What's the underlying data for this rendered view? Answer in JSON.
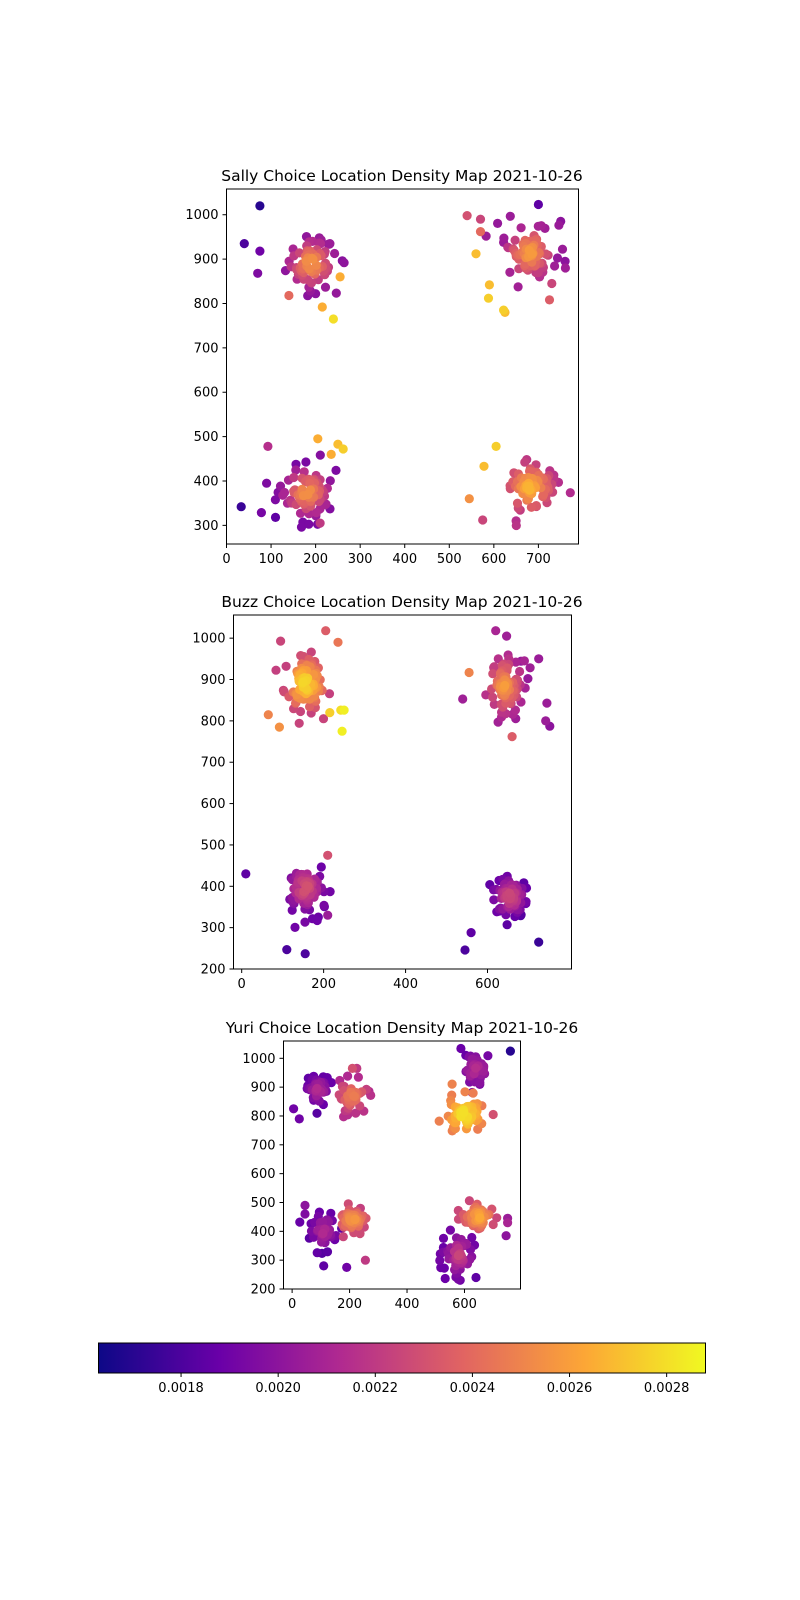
{
  "chart_data": [
    {
      "type": "scatter",
      "title": "Sally Choice Location Density Map 2021-10-26",
      "xlim": [
        0,
        790
      ],
      "ylim": [
        258,
        1058
      ],
      "xticks": [
        0,
        100,
        200,
        300,
        400,
        500,
        600,
        700
      ],
      "yticks": [
        300,
        400,
        500,
        600,
        700,
        800,
        900,
        1000
      ],
      "clusters": [
        {
          "cx": 190,
          "cy": 890,
          "sx": 28,
          "sy": 30,
          "n": 80,
          "cmin": 0.002,
          "cmax": 0.00262
        },
        {
          "cx": 680,
          "cy": 915,
          "sx": 28,
          "sy": 32,
          "n": 80,
          "cmin": 0.00205,
          "cmax": 0.00262
        },
        {
          "cx": 180,
          "cy": 375,
          "sx": 30,
          "sy": 30,
          "n": 80,
          "cmin": 0.00195,
          "cmax": 0.00262
        },
        {
          "cx": 680,
          "cy": 385,
          "sx": 28,
          "sy": 30,
          "n": 80,
          "cmin": 0.00215,
          "cmax": 0.0027
        }
      ],
      "points": [
        {
          "x": 75,
          "y": 1020,
          "c": 0.0017
        },
        {
          "x": 40,
          "y": 935,
          "c": 0.0018
        },
        {
          "x": 75,
          "y": 918,
          "c": 0.0019
        },
        {
          "x": 70,
          "y": 868,
          "c": 0.00195
        },
        {
          "x": 140,
          "y": 818,
          "c": 0.0024
        },
        {
          "x": 215,
          "y": 792,
          "c": 0.00265
        },
        {
          "x": 240,
          "y": 765,
          "c": 0.0028
        },
        {
          "x": 255,
          "y": 860,
          "c": 0.00265
        },
        {
          "x": 540,
          "y": 998,
          "c": 0.0023
        },
        {
          "x": 570,
          "y": 990,
          "c": 0.00225
        },
        {
          "x": 570,
          "y": 962,
          "c": 0.0024
        },
        {
          "x": 700,
          "y": 1023,
          "c": 0.00185
        },
        {
          "x": 750,
          "y": 985,
          "c": 0.002
        },
        {
          "x": 760,
          "y": 895,
          "c": 0.002
        },
        {
          "x": 730,
          "y": 845,
          "c": 0.00225
        },
        {
          "x": 725,
          "y": 808,
          "c": 0.00235
        },
        {
          "x": 590,
          "y": 842,
          "c": 0.0027
        },
        {
          "x": 588,
          "y": 812,
          "c": 0.00275
        },
        {
          "x": 622,
          "y": 785,
          "c": 0.00275
        },
        {
          "x": 625,
          "y": 780,
          "c": 0.0027
        },
        {
          "x": 560,
          "y": 912,
          "c": 0.0027
        },
        {
          "x": 33,
          "y": 342,
          "c": 0.00175
        },
        {
          "x": 93,
          "y": 478,
          "c": 0.00215
        },
        {
          "x": 210,
          "y": 305,
          "c": 0.0022
        },
        {
          "x": 205,
          "y": 495,
          "c": 0.00265
        },
        {
          "x": 250,
          "y": 483,
          "c": 0.0027
        },
        {
          "x": 262,
          "y": 472,
          "c": 0.00275
        },
        {
          "x": 235,
          "y": 460,
          "c": 0.00265
        },
        {
          "x": 90,
          "y": 395,
          "c": 0.00195
        },
        {
          "x": 110,
          "y": 318,
          "c": 0.00185
        },
        {
          "x": 545,
          "y": 360,
          "c": 0.00255
        },
        {
          "x": 575,
          "y": 312,
          "c": 0.00225
        },
        {
          "x": 605,
          "y": 478,
          "c": 0.00275
        },
        {
          "x": 578,
          "y": 433,
          "c": 0.0027
        },
        {
          "x": 650,
          "y": 310,
          "c": 0.00215
        }
      ]
    },
    {
      "type": "scatter",
      "title": "Buzz Choice Location Density Map 2021-10-26",
      "xlim": [
        -20,
        805
      ],
      "ylim": [
        200,
        1056
      ],
      "xticks": [
        0,
        200,
        400,
        600
      ],
      "yticks": [
        200,
        300,
        400,
        500,
        600,
        700,
        800,
        900,
        1000
      ],
      "clusters": [
        {
          "cx": 155,
          "cy": 890,
          "sx": 25,
          "sy": 32,
          "n": 90,
          "cmin": 0.00225,
          "cmax": 0.00285
        },
        {
          "cx": 640,
          "cy": 885,
          "sx": 25,
          "sy": 38,
          "n": 90,
          "cmin": 0.00205,
          "cmax": 0.0026
        },
        {
          "cx": 155,
          "cy": 395,
          "sx": 22,
          "sy": 28,
          "n": 80,
          "cmin": 0.0019,
          "cmax": 0.00235
        },
        {
          "cx": 655,
          "cy": 375,
          "sx": 22,
          "sy": 24,
          "n": 80,
          "cmin": 0.00185,
          "cmax": 0.0023
        }
      ],
      "points": [
        {
          "x": 10,
          "y": 430,
          "c": 0.00185
        },
        {
          "x": 110,
          "y": 247,
          "c": 0.0018
        },
        {
          "x": 155,
          "y": 237,
          "c": 0.0018
        },
        {
          "x": 545,
          "y": 246,
          "c": 0.0018
        },
        {
          "x": 560,
          "y": 288,
          "c": 0.00185
        },
        {
          "x": 725,
          "y": 265,
          "c": 0.00175
        },
        {
          "x": 210,
          "y": 475,
          "c": 0.0023
        },
        {
          "x": 210,
          "y": 330,
          "c": 0.00205
        },
        {
          "x": 95,
          "y": 993,
          "c": 0.00225
        },
        {
          "x": 205,
          "y": 1018,
          "c": 0.00235
        },
        {
          "x": 235,
          "y": 990,
          "c": 0.00245
        },
        {
          "x": 65,
          "y": 815,
          "c": 0.0025
        },
        {
          "x": 92,
          "y": 785,
          "c": 0.00255
        },
        {
          "x": 242,
          "y": 826,
          "c": 0.0028
        },
        {
          "x": 250,
          "y": 826,
          "c": 0.00285
        },
        {
          "x": 245,
          "y": 775,
          "c": 0.00285
        },
        {
          "x": 215,
          "y": 820,
          "c": 0.00275
        },
        {
          "x": 555,
          "y": 917,
          "c": 0.0025
        },
        {
          "x": 620,
          "y": 1018,
          "c": 0.0021
        },
        {
          "x": 660,
          "y": 762,
          "c": 0.00235
        },
        {
          "x": 742,
          "y": 800,
          "c": 0.00205
        },
        {
          "x": 752,
          "y": 787,
          "c": 0.002
        },
        {
          "x": 745,
          "y": 843,
          "c": 0.00205
        },
        {
          "x": 725,
          "y": 950,
          "c": 0.00205
        },
        {
          "x": 690,
          "y": 945,
          "c": 0.0021
        }
      ]
    },
    {
      "type": "scatter",
      "title": "Yuri Choice Location Density Map 2021-10-26",
      "xlim": [
        -30,
        795
      ],
      "ylim": [
        200,
        1060
      ],
      "xticks": [
        0,
        200,
        400,
        600
      ],
      "yticks": [
        200,
        300,
        400,
        500,
        600,
        700,
        800,
        900,
        1000
      ],
      "clusters": [
        {
          "cx": 90,
          "cy": 890,
          "sx": 22,
          "sy": 25,
          "n": 45,
          "cmin": 0.00185,
          "cmax": 0.00215
        },
        {
          "cx": 210,
          "cy": 870,
          "sx": 28,
          "sy": 30,
          "n": 45,
          "cmin": 0.00215,
          "cmax": 0.0025
        },
        {
          "cx": 600,
          "cy": 805,
          "sx": 28,
          "sy": 30,
          "n": 65,
          "cmin": 0.0025,
          "cmax": 0.00285
        },
        {
          "cx": 640,
          "cy": 960,
          "sx": 25,
          "sy": 30,
          "n": 40,
          "cmin": 0.0019,
          "cmax": 0.00215
        },
        {
          "cx": 110,
          "cy": 400,
          "sx": 25,
          "sy": 35,
          "n": 40,
          "cmin": 0.00185,
          "cmax": 0.00215
        },
        {
          "cx": 210,
          "cy": 440,
          "sx": 25,
          "sy": 20,
          "n": 55,
          "cmin": 0.00225,
          "cmax": 0.0026
        },
        {
          "cx": 650,
          "cy": 450,
          "sx": 30,
          "sy": 25,
          "n": 55,
          "cmin": 0.00225,
          "cmax": 0.00265
        },
        {
          "cx": 580,
          "cy": 320,
          "sx": 25,
          "sy": 35,
          "n": 55,
          "cmin": 0.0019,
          "cmax": 0.00225
        }
      ],
      "points": [
        {
          "x": 760,
          "y": 1025,
          "c": 0.0017
        },
        {
          "x": 5,
          "y": 825,
          "c": 0.0019
        },
        {
          "x": 25,
          "y": 790,
          "c": 0.0019
        },
        {
          "x": 190,
          "y": 275,
          "c": 0.0019
        },
        {
          "x": 110,
          "y": 280,
          "c": 0.00185
        },
        {
          "x": 255,
          "y": 300,
          "c": 0.0022
        },
        {
          "x": 45,
          "y": 490,
          "c": 0.002
        },
        {
          "x": 45,
          "y": 460,
          "c": 0.00195
        },
        {
          "x": 640,
          "y": 240,
          "c": 0.00185
        },
        {
          "x": 745,
          "y": 385,
          "c": 0.002
        },
        {
          "x": 750,
          "y": 445,
          "c": 0.00205
        },
        {
          "x": 750,
          "y": 430,
          "c": 0.0021
        },
        {
          "x": 700,
          "y": 805,
          "c": 0.0023
        },
        {
          "x": 210,
          "y": 965,
          "c": 0.0023
        },
        {
          "x": 225,
          "y": 965,
          "c": 0.0022
        }
      ]
    }
  ],
  "colorbar": {
    "min": 0.00163,
    "max": 0.00288,
    "ticks": [
      "0.0018",
      "0.0020",
      "0.0022",
      "0.0024",
      "0.0026",
      "0.0028"
    ],
    "tick_values": [
      0.0018,
      0.002,
      0.0022,
      0.0024,
      0.0026,
      0.0028
    ],
    "colormap": "plasma",
    "colormap_stops": [
      "#0d0887",
      "#6a00a8",
      "#b12a90",
      "#e16462",
      "#fca636",
      "#f0f921"
    ]
  }
}
